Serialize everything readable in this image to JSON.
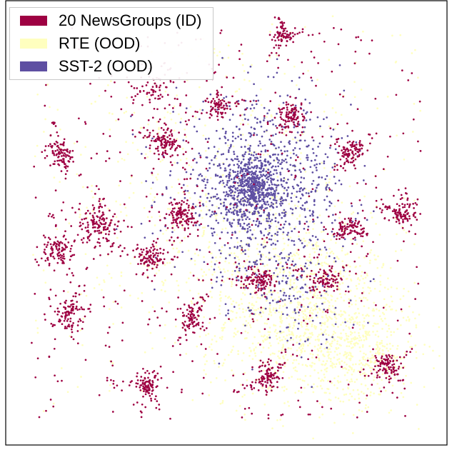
{
  "chart_data": {
    "type": "scatter",
    "title": "",
    "xlabel": "",
    "ylabel": "",
    "grid": false,
    "axes_ticks": false,
    "legend_placement": "top-left",
    "series": [
      {
        "name": "20 NewsGroups (ID)",
        "color": "#9e0142",
        "clusters": [
          {
            "x": 0.63,
            "y": 0.93,
            "n": 55,
            "spread": 0.012
          },
          {
            "x": 0.65,
            "y": 0.75,
            "n": 80,
            "spread": 0.015
          },
          {
            "x": 0.48,
            "y": 0.77,
            "n": 60,
            "spread": 0.014
          },
          {
            "x": 0.36,
            "y": 0.68,
            "n": 90,
            "spread": 0.016
          },
          {
            "x": 0.12,
            "y": 0.66,
            "n": 70,
            "spread": 0.015
          },
          {
            "x": 0.79,
            "y": 0.66,
            "n": 70,
            "spread": 0.015
          },
          {
            "x": 0.2,
            "y": 0.5,
            "n": 120,
            "spread": 0.022
          },
          {
            "x": 0.4,
            "y": 0.52,
            "n": 100,
            "spread": 0.018
          },
          {
            "x": 0.11,
            "y": 0.44,
            "n": 85,
            "spread": 0.018
          },
          {
            "x": 0.32,
            "y": 0.42,
            "n": 80,
            "spread": 0.016
          },
          {
            "x": 0.79,
            "y": 0.49,
            "n": 70,
            "spread": 0.015
          },
          {
            "x": 0.91,
            "y": 0.52,
            "n": 75,
            "spread": 0.016
          },
          {
            "x": 0.58,
            "y": 0.37,
            "n": 80,
            "spread": 0.016
          },
          {
            "x": 0.73,
            "y": 0.37,
            "n": 70,
            "spread": 0.015
          },
          {
            "x": 0.13,
            "y": 0.29,
            "n": 80,
            "spread": 0.018
          },
          {
            "x": 0.42,
            "y": 0.28,
            "n": 70,
            "spread": 0.016
          },
          {
            "x": 0.87,
            "y": 0.17,
            "n": 80,
            "spread": 0.018
          },
          {
            "x": 0.6,
            "y": 0.15,
            "n": 75,
            "spread": 0.016
          },
          {
            "x": 0.32,
            "y": 0.13,
            "n": 70,
            "spread": 0.015
          },
          {
            "x": 0.33,
            "y": 0.8,
            "n": 40,
            "spread": 0.03
          }
        ],
        "scatter_n": 500
      },
      {
        "name": "RTE (OOD)",
        "color": "#ffffbf",
        "clusters": [
          {
            "x": 0.7,
            "y": 0.28,
            "n": 900,
            "spread": 0.1
          },
          {
            "x": 0.55,
            "y": 0.4,
            "n": 400,
            "spread": 0.12
          },
          {
            "x": 0.82,
            "y": 0.2,
            "n": 300,
            "spread": 0.06
          },
          {
            "x": 0.45,
            "y": 0.65,
            "n": 300,
            "spread": 0.18
          }
        ],
        "scatter_n": 200
      },
      {
        "name": "SST-2 (OOD)",
        "color": "#5e4fa2",
        "clusters": [
          {
            "x": 0.56,
            "y": 0.58,
            "n": 500,
            "spread": 0.035
          },
          {
            "x": 0.58,
            "y": 0.58,
            "n": 900,
            "spread": 0.1
          },
          {
            "x": 0.65,
            "y": 0.35,
            "n": 150,
            "spread": 0.07
          }
        ],
        "scatter_n": 0
      }
    ],
    "xlim": [
      0,
      1
    ],
    "ylim": [
      0,
      1
    ]
  }
}
